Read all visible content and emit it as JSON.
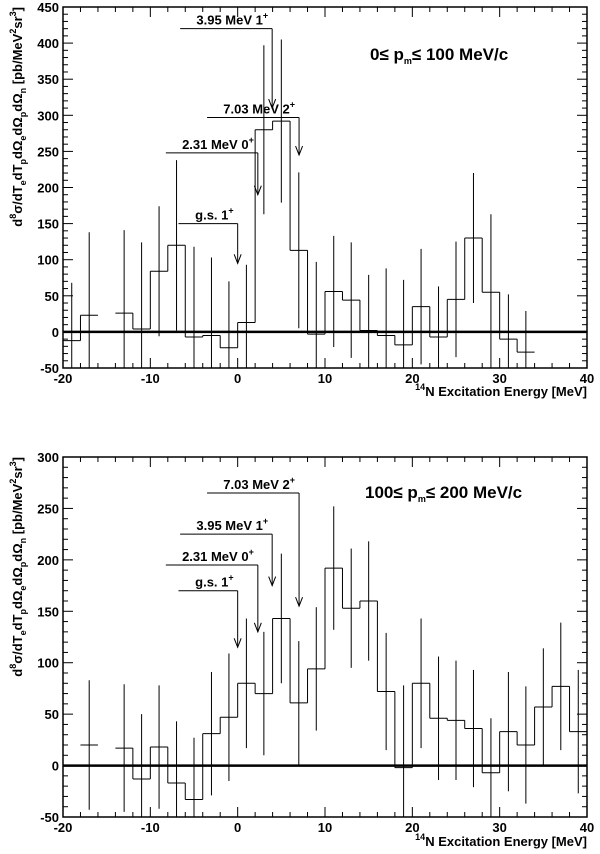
{
  "chart_data": [
    {
      "type": "histogram",
      "panel": "top",
      "label_parts": [
        "0",
        "≤ p",
        "m",
        "≤ 100 MeV/c"
      ],
      "xlabel_parts": [
        "14",
        "N Excitation Energy [MeV]"
      ],
      "ylabel_parts": [
        "d",
        "8",
        "σ/dT",
        "e",
        "dT",
        "p",
        "dΩ",
        "e",
        "dΩ",
        "p",
        "dΩ",
        "n",
        "  [pb/MeV",
        "2",
        "sr",
        "3",
        "]"
      ],
      "xlim": [
        -20,
        40
      ],
      "ylim": [
        -50,
        450
      ],
      "xticks": [
        -20,
        -10,
        0,
        10,
        20,
        30,
        40
      ],
      "yticks": [
        -50,
        0,
        50,
        100,
        150,
        200,
        250,
        300,
        350,
        400,
        450
      ],
      "bin_width": 2,
      "bin_start": -20,
      "values": [
        -12,
        23,
        null,
        26,
        4,
        84,
        120,
        -7,
        -5,
        -22,
        13,
        280,
        292,
        113,
        -3,
        56,
        44,
        2,
        -5,
        -18,
        35,
        -7,
        45,
        130,
        55,
        -10,
        -28,
        null,
        null,
        null
      ],
      "errors": [
        80,
        115,
        null,
        115,
        120,
        90,
        118,
        125,
        108,
        92,
        80,
        117,
        113,
        108,
        100,
        77,
        80,
        77,
        93,
        90,
        80,
        70,
        80,
        90,
        108,
        62,
        57,
        null,
        null,
        null
      ],
      "annotations": [
        {
          "text": "g.s. 1",
          "sup": "+",
          "energy": 0.0,
          "tip": 95,
          "top": 150
        },
        {
          "text": "2.31 MeV 0",
          "sup": "+",
          "energy": 2.31,
          "tip": 190,
          "top": 248
        },
        {
          "text": "3.95 MeV 1",
          "sup": "+",
          "energy": 3.95,
          "tip": 310,
          "top": 420
        },
        {
          "text": "7.03 MeV 2",
          "sup": "+",
          "energy": 7.03,
          "tip": 245,
          "top": 297
        }
      ]
    },
    {
      "type": "histogram",
      "panel": "bottom",
      "label_parts": [
        "100",
        "≤ p",
        "m",
        "≤ 200 MeV/c"
      ],
      "xlabel_parts": [
        "14",
        "N Excitation Energy [MeV]"
      ],
      "ylabel_parts": [
        "d",
        "8",
        "σ/dT",
        "e",
        "dT",
        "p",
        "dΩ",
        "e",
        "dΩ",
        "p",
        "dΩ",
        "n",
        "  [pb/MeV",
        "2",
        "sr",
        "3",
        "]"
      ],
      "xlim": [
        -20,
        40
      ],
      "ylim": [
        -50,
        300
      ],
      "xticks": [
        -20,
        -10,
        0,
        10,
        20,
        30,
        40
      ],
      "yticks": [
        -50,
        0,
        50,
        100,
        150,
        200,
        250,
        300
      ],
      "bin_width": 2,
      "bin_start": -20,
      "values": [
        null,
        20,
        null,
        17,
        -13,
        18,
        -17,
        -33,
        31,
        47,
        80,
        70,
        143,
        61,
        94,
        192,
        153,
        160,
        72,
        -2,
        80,
        46,
        44,
        36,
        -7,
        33,
        20,
        57,
        77,
        33
      ],
      "errors": [
        null,
        63,
        null,
        62,
        63,
        60,
        60,
        60,
        60,
        62,
        63,
        60,
        63,
        60,
        60,
        60,
        58,
        58,
        57,
        80,
        63,
        60,
        58,
        57,
        53,
        58,
        57,
        57,
        62,
        60
      ],
      "annotations": [
        {
          "text": "g.s. 1",
          "sup": "+",
          "energy": 0.0,
          "tip": 115,
          "top": 170
        },
        {
          "text": "2.31 MeV 0",
          "sup": "+",
          "energy": 2.31,
          "tip": 130,
          "top": 195
        },
        {
          "text": "3.95 MeV 1",
          "sup": "+",
          "energy": 3.95,
          "tip": 175,
          "top": 225
        },
        {
          "text": "7.03 MeV 2",
          "sup": "+",
          "energy": 7.03,
          "tip": 155,
          "top": 265
        }
      ]
    }
  ]
}
